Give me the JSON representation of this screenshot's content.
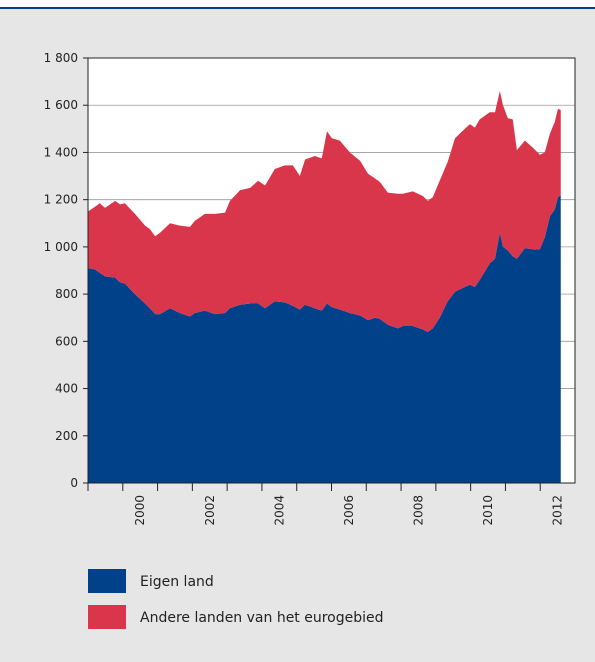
{
  "chart_data": {
    "type": "stacked_area",
    "x": [
      1999.0,
      1999.2,
      1999.34,
      1999.49,
      1999.78,
      1999.92,
      2000.06,
      2000.35,
      2000.64,
      2000.78,
      2000.93,
      2001.07,
      2001.36,
      2001.64,
      2001.93,
      2002.07,
      2002.36,
      2002.65,
      2002.94,
      2003.08,
      2003.37,
      2003.66,
      2003.89,
      2004.09,
      2004.37,
      2004.66,
      2004.89,
      2005.09,
      2005.24,
      2005.52,
      2005.72,
      2005.87,
      2006.01,
      2006.24,
      2006.53,
      2006.82,
      2007.05,
      2007.25,
      2007.39,
      2007.62,
      2007.91,
      2008.05,
      2008.34,
      2008.63,
      2008.77,
      2008.91,
      2009.11,
      2009.34,
      2009.55,
      2009.83,
      2009.98,
      2010.12,
      2010.26,
      2010.55,
      2010.7,
      2010.84,
      2010.93,
      2011.07,
      2011.21,
      2011.33,
      2011.56,
      2011.79,
      2011.99,
      2012.13,
      2012.28,
      2012.42,
      2012.51,
      2012.59
    ],
    "series": [
      {
        "name": "Eigen land",
        "color": "#00418a",
        "values": [
          910,
          905,
          890,
          875,
          870,
          850,
          845,
          800,
          760,
          740,
          715,
          715,
          740,
          720,
          705,
          720,
          730,
          715,
          720,
          740,
          755,
          760,
          760,
          740,
          770,
          765,
          750,
          735,
          755,
          740,
          730,
          760,
          745,
          735,
          720,
          710,
          690,
          700,
          695,
          670,
          655,
          665,
          665,
          650,
          640,
          655,
          700,
          770,
          810,
          830,
          840,
          830,
          860,
          930,
          950,
          1060,
          1000,
          985,
          960,
          950,
          995,
          990,
          990,
          1040,
          1130,
          1160,
          1210,
          1220
        ]
      },
      {
        "name": "Andere landen van het eurogebied",
        "color": "#d9364b",
        "values": [
          240,
          265,
          295,
          290,
          325,
          330,
          340,
          340,
          330,
          335,
          330,
          345,
          360,
          370,
          380,
          390,
          410,
          425,
          425,
          455,
          485,
          490,
          520,
          520,
          560,
          580,
          595,
          565,
          615,
          645,
          645,
          730,
          715,
          715,
          680,
          655,
          620,
          590,
          580,
          560,
          570,
          560,
          570,
          565,
          555,
          555,
          580,
          590,
          650,
          670,
          680,
          675,
          680,
          640,
          620,
          600,
          600,
          560,
          580,
          460,
          455,
          430,
          400,
          360,
          350,
          370,
          375,
          360
        ]
      }
    ],
    "xlim": [
      1999,
      2013
    ],
    "xticks": [
      2000,
      2002,
      2004,
      2006,
      2008,
      2010,
      2012
    ],
    "xminor_ticks": [
      1999,
      2000,
      2001,
      2002,
      2003,
      2004,
      2005,
      2006,
      2007,
      2008,
      2009,
      2010,
      2011,
      2012
    ],
    "ylim": [
      0,
      1800
    ],
    "yticks": [
      0,
      200,
      400,
      600,
      800,
      {
        "value": 1000,
        "label": "1 000"
      },
      {
        "value": 1200,
        "label": "1 200"
      },
      {
        "value": 1400,
        "label": "1 400"
      },
      {
        "value": 1600,
        "label": "1 600"
      },
      {
        "value": 1800,
        "label": "1 800"
      }
    ],
    "grid": true
  }
}
